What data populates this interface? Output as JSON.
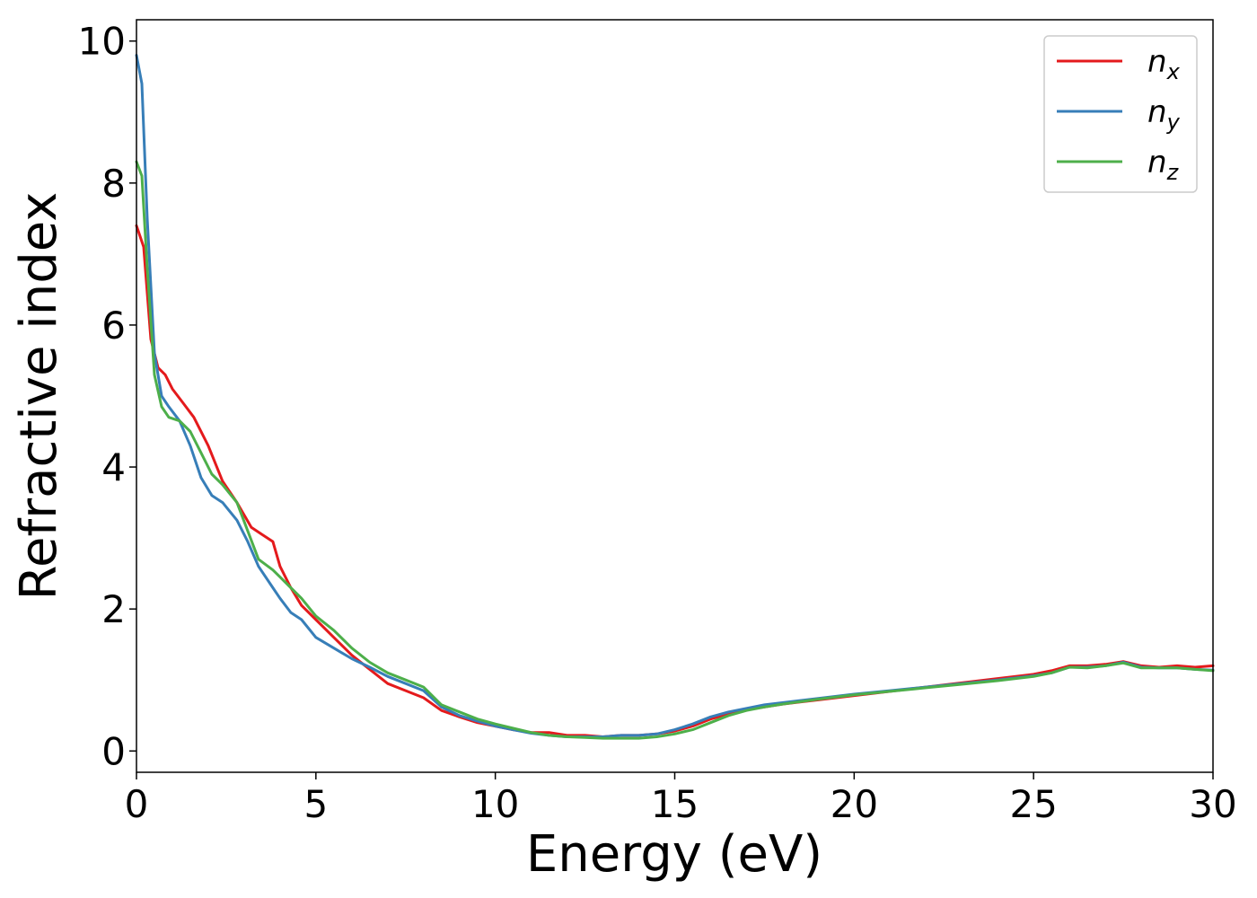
{
  "chart_data": {
    "type": "line",
    "title": "",
    "xlabel": "Energy (eV)",
    "ylabel": "Refractive index",
    "xlim": [
      0,
      30
    ],
    "ylim": [
      -0.3,
      10.3
    ],
    "xticks": [
      0,
      5,
      10,
      15,
      20,
      25,
      30
    ],
    "yticks": [
      0,
      2,
      4,
      6,
      8,
      10
    ],
    "grid": false,
    "legend_position": "top-right",
    "series": [
      {
        "name": "n",
        "subscript": "x",
        "color": "#e41a1c",
        "x": [
          0,
          0.2,
          0.4,
          0.6,
          0.8,
          1.0,
          1.3,
          1.6,
          2.0,
          2.4,
          2.8,
          3.2,
          3.5,
          3.8,
          4.0,
          4.3,
          4.6,
          5.0,
          5.5,
          6.0,
          6.5,
          7.0,
          7.5,
          8.0,
          8.5,
          9.0,
          9.5,
          10.0,
          10.5,
          11.0,
          11.5,
          12.0,
          12.5,
          13.0,
          13.5,
          14.0,
          14.5,
          15.0,
          15.5,
          16.0,
          16.5,
          17.0,
          17.5,
          18.0,
          19.0,
          20.0,
          21.0,
          22.0,
          23.0,
          24.0,
          25.0,
          25.5,
          26.0,
          26.5,
          27.0,
          27.5,
          28.0,
          28.5,
          29.0,
          29.5,
          30.0
        ],
        "values": [
          7.4,
          7.1,
          5.8,
          5.4,
          5.3,
          5.1,
          4.9,
          4.7,
          4.3,
          3.8,
          3.5,
          3.15,
          3.05,
          2.95,
          2.6,
          2.3,
          2.05,
          1.85,
          1.6,
          1.35,
          1.15,
          0.95,
          0.85,
          0.75,
          0.57,
          0.48,
          0.4,
          0.35,
          0.3,
          0.26,
          0.26,
          0.22,
          0.22,
          0.2,
          0.22,
          0.22,
          0.24,
          0.28,
          0.35,
          0.45,
          0.52,
          0.58,
          0.62,
          0.66,
          0.72,
          0.78,
          0.84,
          0.9,
          0.96,
          1.02,
          1.08,
          1.13,
          1.2,
          1.2,
          1.22,
          1.26,
          1.2,
          1.18,
          1.2,
          1.18,
          1.2
        ]
      },
      {
        "name": "n",
        "subscript": "y",
        "color": "#377eb8",
        "x": [
          0,
          0.15,
          0.3,
          0.5,
          0.7,
          0.9,
          1.2,
          1.5,
          1.8,
          2.1,
          2.4,
          2.8,
          3.1,
          3.4,
          3.8,
          4.0,
          4.3,
          4.6,
          5.0,
          5.5,
          6.0,
          6.5,
          7.0,
          7.5,
          8.0,
          8.5,
          9.0,
          9.5,
          10.0,
          10.5,
          11.0,
          11.5,
          12.0,
          12.5,
          13.0,
          13.5,
          14.0,
          14.5,
          15.0,
          15.5,
          16.0,
          16.5,
          17.0,
          17.5,
          18.0,
          19.0,
          20.0,
          21.0,
          22.0,
          23.0,
          24.0,
          25.0,
          25.5,
          26.0,
          26.5,
          27.0,
          27.5,
          28.0,
          28.5,
          29.0,
          29.5,
          30.0
        ],
        "values": [
          9.8,
          9.4,
          7.5,
          5.6,
          5.0,
          4.85,
          4.65,
          4.3,
          3.85,
          3.6,
          3.5,
          3.25,
          2.95,
          2.6,
          2.3,
          2.15,
          1.95,
          1.85,
          1.6,
          1.45,
          1.3,
          1.18,
          1.05,
          0.95,
          0.85,
          0.62,
          0.5,
          0.42,
          0.35,
          0.3,
          0.25,
          0.22,
          0.2,
          0.2,
          0.2,
          0.22,
          0.22,
          0.24,
          0.3,
          0.38,
          0.48,
          0.55,
          0.6,
          0.65,
          0.68,
          0.74,
          0.8,
          0.85,
          0.9,
          0.95,
          1.0,
          1.06,
          1.1,
          1.18,
          1.18,
          1.2,
          1.25,
          1.18,
          1.17,
          1.17,
          1.15,
          1.14
        ]
      },
      {
        "name": "n",
        "subscript": "z",
        "color": "#4daf4a",
        "x": [
          0,
          0.15,
          0.3,
          0.5,
          0.7,
          0.9,
          1.2,
          1.5,
          1.8,
          2.1,
          2.4,
          2.8,
          3.1,
          3.4,
          3.8,
          4.0,
          4.3,
          4.6,
          5.0,
          5.5,
          6.0,
          6.5,
          7.0,
          7.5,
          8.0,
          8.5,
          9.0,
          9.5,
          10.0,
          10.5,
          11.0,
          11.5,
          12.0,
          12.5,
          13.0,
          13.5,
          14.0,
          14.5,
          15.0,
          15.5,
          16.0,
          16.5,
          17.0,
          17.5,
          18.0,
          19.0,
          20.0,
          21.0,
          22.0,
          23.0,
          24.0,
          25.0,
          25.5,
          26.0,
          26.5,
          27.0,
          27.5,
          28.0,
          28.5,
          29.0,
          29.5,
          30.0
        ],
        "values": [
          8.3,
          8.1,
          6.8,
          5.3,
          4.85,
          4.7,
          4.65,
          4.5,
          4.2,
          3.9,
          3.75,
          3.5,
          3.1,
          2.7,
          2.55,
          2.45,
          2.3,
          2.15,
          1.9,
          1.7,
          1.45,
          1.25,
          1.1,
          1.0,
          0.9,
          0.65,
          0.55,
          0.45,
          0.38,
          0.32,
          0.26,
          0.22,
          0.2,
          0.19,
          0.18,
          0.18,
          0.18,
          0.2,
          0.24,
          0.3,
          0.4,
          0.5,
          0.57,
          0.62,
          0.66,
          0.73,
          0.79,
          0.84,
          0.89,
          0.94,
          0.99,
          1.05,
          1.1,
          1.18,
          1.17,
          1.2,
          1.24,
          1.17,
          1.17,
          1.17,
          1.15,
          1.13
        ]
      }
    ]
  }
}
